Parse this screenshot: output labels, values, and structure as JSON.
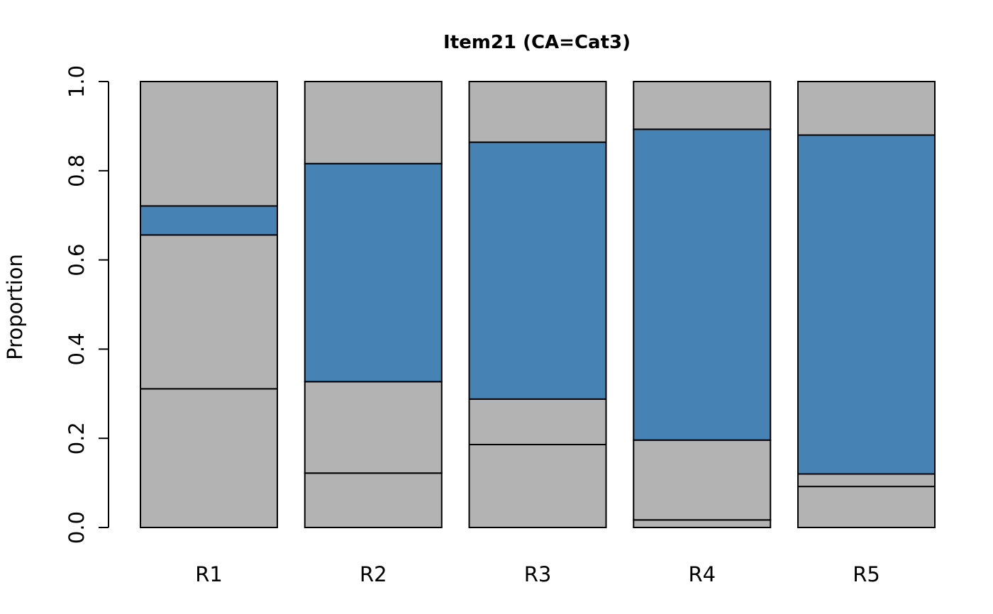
{
  "chart_data": {
    "type": "bar",
    "stacked": true,
    "title": "Item21 (CA=Cat3)",
    "xlabel": "",
    "ylabel": "Proportion",
    "ylim": [
      0,
      1
    ],
    "yticks": [
      "0.0",
      "0.2",
      "0.4",
      "0.6",
      "0.8",
      "1.0"
    ],
    "categories": [
      "R1",
      "R2",
      "R3",
      "R4",
      "R5"
    ],
    "highlight_segment_index": 3,
    "colors": {
      "segment": "#b3b3b3",
      "highlight": "#4682b4",
      "stroke": "#000000"
    },
    "series": [
      {
        "values": [
          0.311,
          0.122,
          0.186,
          0.017,
          0.092
        ]
      },
      {
        "values": [
          0.0,
          0.0,
          0.0,
          0.0,
          0.0
        ]
      },
      {
        "values": [
          0.345,
          0.205,
          0.102,
          0.179,
          0.028
        ]
      },
      {
        "values": [
          0.065,
          0.489,
          0.576,
          0.697,
          0.76
        ]
      },
      {
        "values": [
          0.279,
          0.184,
          0.136,
          0.107,
          0.12
        ]
      }
    ]
  }
}
